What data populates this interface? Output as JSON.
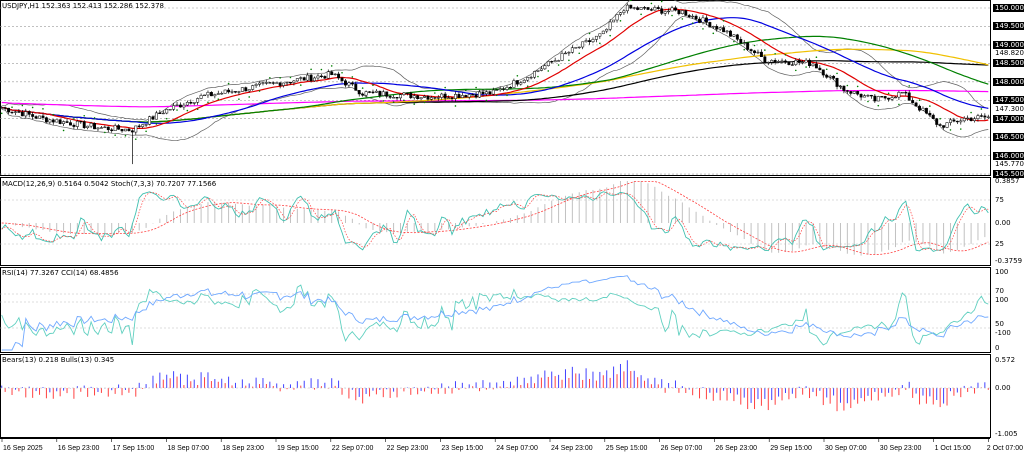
{
  "header": {
    "title": "USDJPY,H1  152.363 152.413 152.286 152.378"
  },
  "panels": {
    "macd_label": "MACD(12,26,9) 0.5164 0.5042  Stoch(7,3,3) 70.7207 77.1566",
    "rsi_label": "RSI(14) 77.3267  CCI(14) 68.4856",
    "bears_label": "Bears(13) 0.218  Bulls(13) 0.345"
  },
  "price_axis": {
    "labels": [
      "150.000",
      "149.500",
      "149.000",
      "148.500",
      "148.000",
      "147.500",
      "147.000",
      "146.500",
      "146.000",
      "145.500"
    ],
    "extra": [
      "148.820",
      "147.300",
      "145.770"
    ]
  },
  "macd_axis": [
    "0.3857",
    "75",
    "0.00",
    "25",
    "-0.3759"
  ],
  "rsi_axis": [
    "100",
    "70",
    "100",
    "50",
    "-100",
    "0"
  ],
  "bears_axis": [
    "0.572",
    "0.00",
    "-1.005"
  ],
  "time_axis": [
    "16 Sep 2025",
    "16 Sep 23:00",
    "17 Sep 15:00",
    "18 Sep 07:00",
    "18 Sep 23:00",
    "19 Sep 15:00",
    "22 Sep 07:00",
    "22 Sep 23:00",
    "23 Sep 15:00",
    "24 Sep 07:00",
    "24 Sep 23:00",
    "25 Sep 15:00",
    "26 Sep 07:00",
    "26 Sep 23:00",
    "29 Sep 15:00",
    "30 Sep 07:00",
    "30 Sep 23:00",
    "1 Oct 15:00",
    "2 Oct 07:00"
  ],
  "chart_data": {
    "type": "candlestick",
    "symbol": "USDJPY",
    "timeframe": "H1",
    "ylim": [
      145.5,
      150.0
    ],
    "bars": 288,
    "close_anchors": [
      [
        0,
        147.3
      ],
      [
        12,
        147.0
      ],
      [
        29,
        146.75
      ],
      [
        38,
        146.7
      ],
      [
        47,
        147.2
      ],
      [
        58,
        147.6
      ],
      [
        70,
        147.8
      ],
      [
        82,
        148.0
      ],
      [
        96,
        148.2
      ],
      [
        105,
        147.7
      ],
      [
        125,
        147.6
      ],
      [
        143,
        147.7
      ],
      [
        152,
        148.1
      ],
      [
        163,
        148.7
      ],
      [
        175,
        149.3
      ],
      [
        181,
        150.0
      ],
      [
        198,
        149.9
      ],
      [
        210,
        149.4
      ],
      [
        222,
        148.6
      ],
      [
        236,
        148.5
      ],
      [
        245,
        147.8
      ],
      [
        254,
        147.5
      ],
      [
        262,
        147.7
      ],
      [
        273,
        146.8
      ],
      [
        280,
        147.0
      ],
      [
        288,
        147.05
      ]
    ],
    "spike_low": {
      "bar": 38,
      "price": 145.77
    },
    "colors": {
      "ma_fast": "#e00000",
      "ma_mid": "#0000e0",
      "ma_slow": "#008000",
      "ma_long": "#000000",
      "ma_yellow": "#f0c000",
      "ma_magenta": "#ff00ff",
      "bands": "#808080",
      "sar": "#008000",
      "stoch": "#40c0b0",
      "signal": "#ff4040",
      "rsi": "#6fa8ff",
      "cci": "#60d0c0",
      "bulls": "#4040ff",
      "bears": "#ff4040"
    }
  }
}
